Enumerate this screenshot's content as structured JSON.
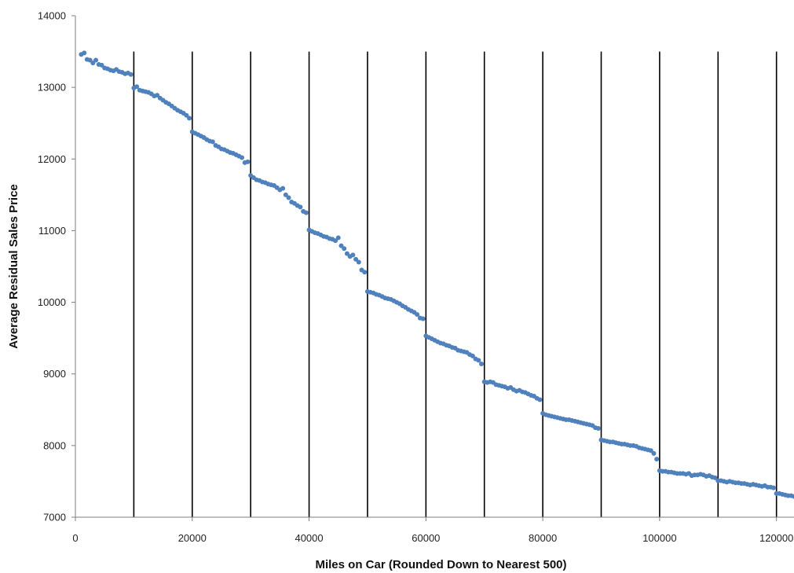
{
  "chart_data": {
    "type": "scatter",
    "title": "",
    "xlabel": "Miles on Car (Rounded Down to Nearest 500)",
    "ylabel": "Average Residual Sales Price",
    "xlim": [
      0,
      123000
    ],
    "ylim": [
      7000,
      14000
    ],
    "x_ticks": [
      0,
      20000,
      40000,
      60000,
      80000,
      100000,
      120000
    ],
    "y_ticks": [
      7000,
      8000,
      9000,
      10000,
      11000,
      12000,
      13000,
      14000
    ],
    "vertical_reference_lines": [
      10000,
      20000,
      30000,
      40000,
      50000,
      60000,
      70000,
      80000,
      90000,
      100000,
      110000,
      120000
    ],
    "grid": false,
    "legend": "none",
    "marker_color": "#4f81bd",
    "reference_line_color": "#000000",
    "series": [
      {
        "x": [
          1000,
          1500,
          2000,
          2500,
          3000,
          3500,
          4000,
          4500,
          5000,
          5500,
          6000,
          6500,
          7000,
          7500,
          8000,
          8500,
          9000,
          9500,
          10000,
          10500,
          11000,
          11500,
          12000,
          12500,
          13000,
          13500,
          14000,
          14500,
          15000,
          15500,
          16000,
          16500,
          17000,
          17500,
          18000,
          18500,
          19000,
          19500,
          20000,
          20500,
          21000,
          21500,
          22000,
          22500,
          23000,
          23500,
          24000,
          24500,
          25000,
          25500,
          26000,
          26500,
          27000,
          27500,
          28000,
          28500,
          29000,
          29500,
          30000,
          30500,
          31000,
          31500,
          32000,
          32500,
          33000,
          33500,
          34000,
          34500,
          35000,
          35500,
          36000,
          36500,
          37000,
          37500,
          38000,
          38500,
          39000,
          39500,
          40000,
          40500,
          41000,
          41500,
          42000,
          42500,
          43000,
          43500,
          44000,
          44500,
          45000,
          45500,
          46000,
          46500,
          47000,
          47500,
          48000,
          48500,
          49000,
          49500,
          50000,
          50500,
          51000,
          51500,
          52000,
          52500,
          53000,
          53500,
          54000,
          54500,
          55000,
          55500,
          56000,
          56500,
          57000,
          57500,
          58000,
          58500,
          59000,
          59500,
          60000,
          60500,
          61000,
          61500,
          62000,
          62500,
          63000,
          63500,
          64000,
          64500,
          65000,
          65500,
          66000,
          66500,
          67000,
          67500,
          68000,
          68500,
          69000,
          69500,
          70000,
          70500,
          71000,
          71500,
          72000,
          72500,
          73000,
          73500,
          74000,
          74500,
          75000,
          75500,
          76000,
          76500,
          77000,
          77500,
          78000,
          78500,
          79000,
          79500,
          80000,
          80500,
          81000,
          81500,
          82000,
          82500,
          83000,
          83500,
          84000,
          84500,
          85000,
          85500,
          86000,
          86500,
          87000,
          87500,
          88000,
          88500,
          89000,
          89500,
          90000,
          90500,
          91000,
          91500,
          92000,
          92500,
          93000,
          93500,
          94000,
          94500,
          95000,
          95500,
          96000,
          96500,
          97000,
          97500,
          98000,
          98500,
          99000,
          99500,
          100000,
          100500,
          101000,
          101500,
          102000,
          102500,
          103000,
          103500,
          104000,
          104500,
          105000,
          105500,
          106000,
          106500,
          107000,
          107500,
          108000,
          108500,
          109000,
          109500,
          110000,
          110500,
          111000,
          111500,
          112000,
          112500,
          113000,
          113500,
          114000,
          114500,
          115000,
          115500,
          116000,
          116500,
          117000,
          117500,
          118000,
          118500,
          119000,
          119500,
          120000,
          120500,
          121000,
          121500,
          122000,
          122500,
          123000
        ],
        "y": [
          13460,
          13480,
          13390,
          13380,
          13340,
          13380,
          13320,
          13310,
          13270,
          13260,
          13240,
          13230,
          13250,
          13220,
          13210,
          13190,
          13200,
          13180,
          12990,
          13010,
          12960,
          12950,
          12940,
          12930,
          12910,
          12880,
          12890,
          12850,
          12820,
          12790,
          12770,
          12740,
          12710,
          12680,
          12660,
          12640,
          12610,
          12570,
          12380,
          12360,
          12340,
          12320,
          12300,
          12270,
          12250,
          12240,
          12190,
          12170,
          12140,
          12130,
          12110,
          12090,
          12080,
          12060,
          12040,
          12020,
          11950,
          11960,
          11770,
          11740,
          11710,
          11700,
          11680,
          11670,
          11650,
          11640,
          11630,
          11600,
          11570,
          11590,
          11500,
          11460,
          11400,
          11380,
          11350,
          11330,
          11270,
          11250,
          11010,
          10990,
          10970,
          10960,
          10940,
          10920,
          10910,
          10890,
          10880,
          10860,
          10900,
          10790,
          10750,
          10680,
          10640,
          10660,
          10600,
          10560,
          10450,
          10420,
          10150,
          10140,
          10130,
          10110,
          10100,
          10080,
          10060,
          10050,
          10040,
          10020,
          10000,
          9980,
          9950,
          9930,
          9900,
          9880,
          9860,
          9830,
          9780,
          9770,
          9530,
          9510,
          9490,
          9470,
          9450,
          9430,
          9420,
          9400,
          9390,
          9370,
          9360,
          9330,
          9320,
          9310,
          9300,
          9270,
          9250,
          9210,
          9190,
          9140,
          8890,
          8880,
          8890,
          8880,
          8850,
          8840,
          8830,
          8820,
          8800,
          8810,
          8780,
          8760,
          8770,
          8750,
          8740,
          8720,
          8700,
          8690,
          8660,
          8640,
          8450,
          8430,
          8420,
          8410,
          8400,
          8390,
          8380,
          8370,
          8360,
          8360,
          8350,
          8340,
          8330,
          8320,
          8310,
          8300,
          8290,
          8280,
          8250,
          8240,
          8080,
          8070,
          8060,
          8050,
          8050,
          8040,
          8030,
          8020,
          8020,
          8010,
          8000,
          8000,
          7990,
          7970,
          7960,
          7950,
          7940,
          7930,
          7890,
          7810,
          7650,
          7640,
          7640,
          7630,
          7630,
          7620,
          7610,
          7610,
          7610,
          7600,
          7610,
          7580,
          7590,
          7590,
          7600,
          7590,
          7570,
          7580,
          7560,
          7550,
          7510,
          7510,
          7500,
          7490,
          7500,
          7490,
          7480,
          7480,
          7470,
          7470,
          7460,
          7450,
          7460,
          7450,
          7440,
          7430,
          7440,
          7420,
          7420,
          7410,
          7330,
          7330,
          7320,
          7310,
          7300,
          7300,
          7290
        ]
      }
    ]
  }
}
